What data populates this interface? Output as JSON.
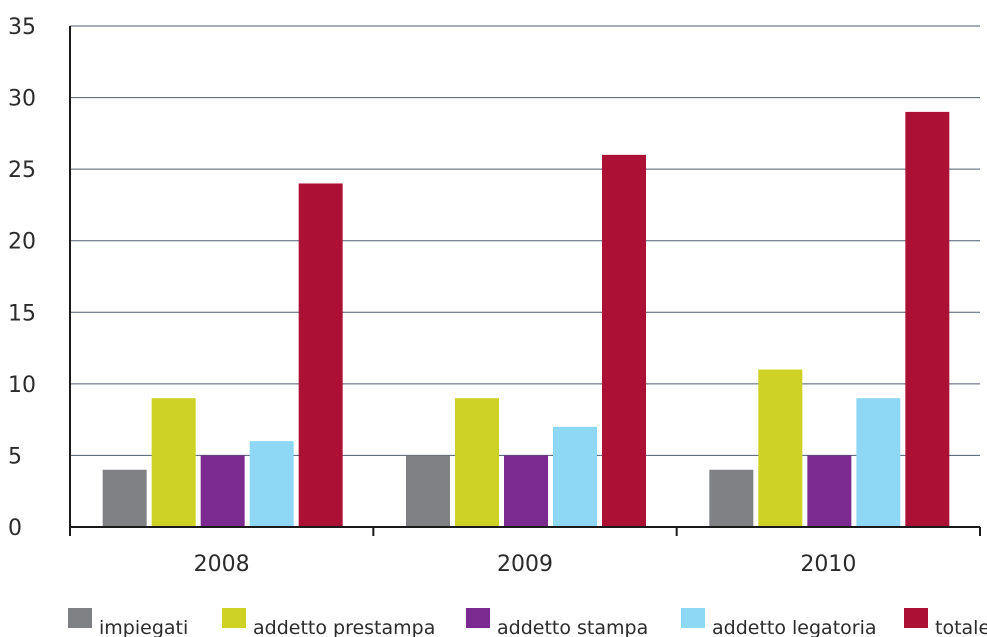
{
  "chart_data": {
    "type": "bar",
    "title": "",
    "xlabel": "",
    "ylabel": "",
    "categories": [
      "2008",
      "2009",
      "2010"
    ],
    "ylim": [
      0,
      35
    ],
    "yticks": [
      0,
      5,
      10,
      15,
      20,
      25,
      30,
      35
    ],
    "grid": true,
    "legend_position": "bottom",
    "series": [
      {
        "name": "impiegati",
        "color": "#808184",
        "values": [
          4,
          5,
          4
        ]
      },
      {
        "name": "addetto prestampa",
        "color": "#cdd225",
        "values": [
          9,
          9,
          11
        ]
      },
      {
        "name": "addetto stampa",
        "color": "#7b2a8f",
        "values": [
          5,
          5,
          5
        ]
      },
      {
        "name": "addetto legatoria",
        "color": "#8fd8f5",
        "values": [
          6,
          7,
          9
        ]
      },
      {
        "name": "totale",
        "color": "#ad1035",
        "values": [
          24,
          26,
          29
        ]
      }
    ]
  }
}
